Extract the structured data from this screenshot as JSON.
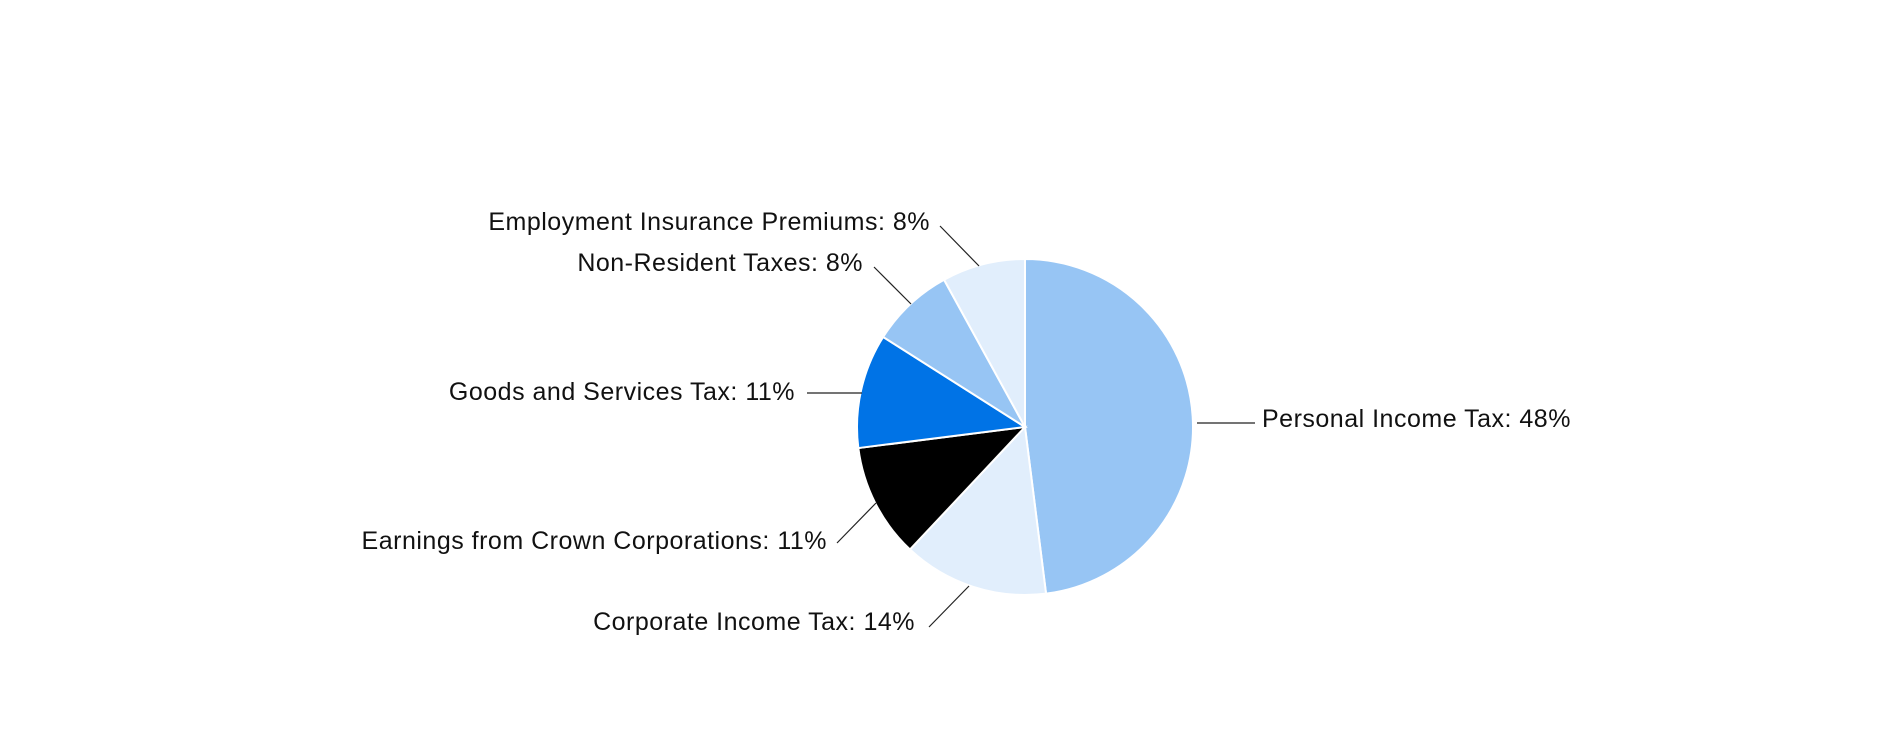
{
  "chart_data": {
    "type": "pie",
    "title": "",
    "slices": [
      {
        "label": "Personal Income Tax",
        "value": 48,
        "display": "Personal Income Tax: 48%",
        "color": "#97c5f4"
      },
      {
        "label": "Corporate Income Tax",
        "value": 14,
        "display": "Corporate Income Tax: 14%",
        "color": "#e1eefc"
      },
      {
        "label": "Earnings from Crown Corporations",
        "value": 11,
        "display": "Earnings from Crown Corporations: 11%",
        "color": "#000000"
      },
      {
        "label": "Goods and Services Tax",
        "value": 11,
        "display": "Goods and Services Tax: 11%",
        "color": "#0073e6"
      },
      {
        "label": "Non-Resident Taxes",
        "value": 8,
        "display": "Non-Resident Taxes: 8%",
        "color": "#97c5f4"
      },
      {
        "label": "Employment Insurance Premiums",
        "value": 8,
        "display": "Employment Insurance Premiums: 8%",
        "color": "#e1eefc"
      }
    ],
    "legend": "none",
    "start": "top",
    "direction": "clockwise"
  }
}
